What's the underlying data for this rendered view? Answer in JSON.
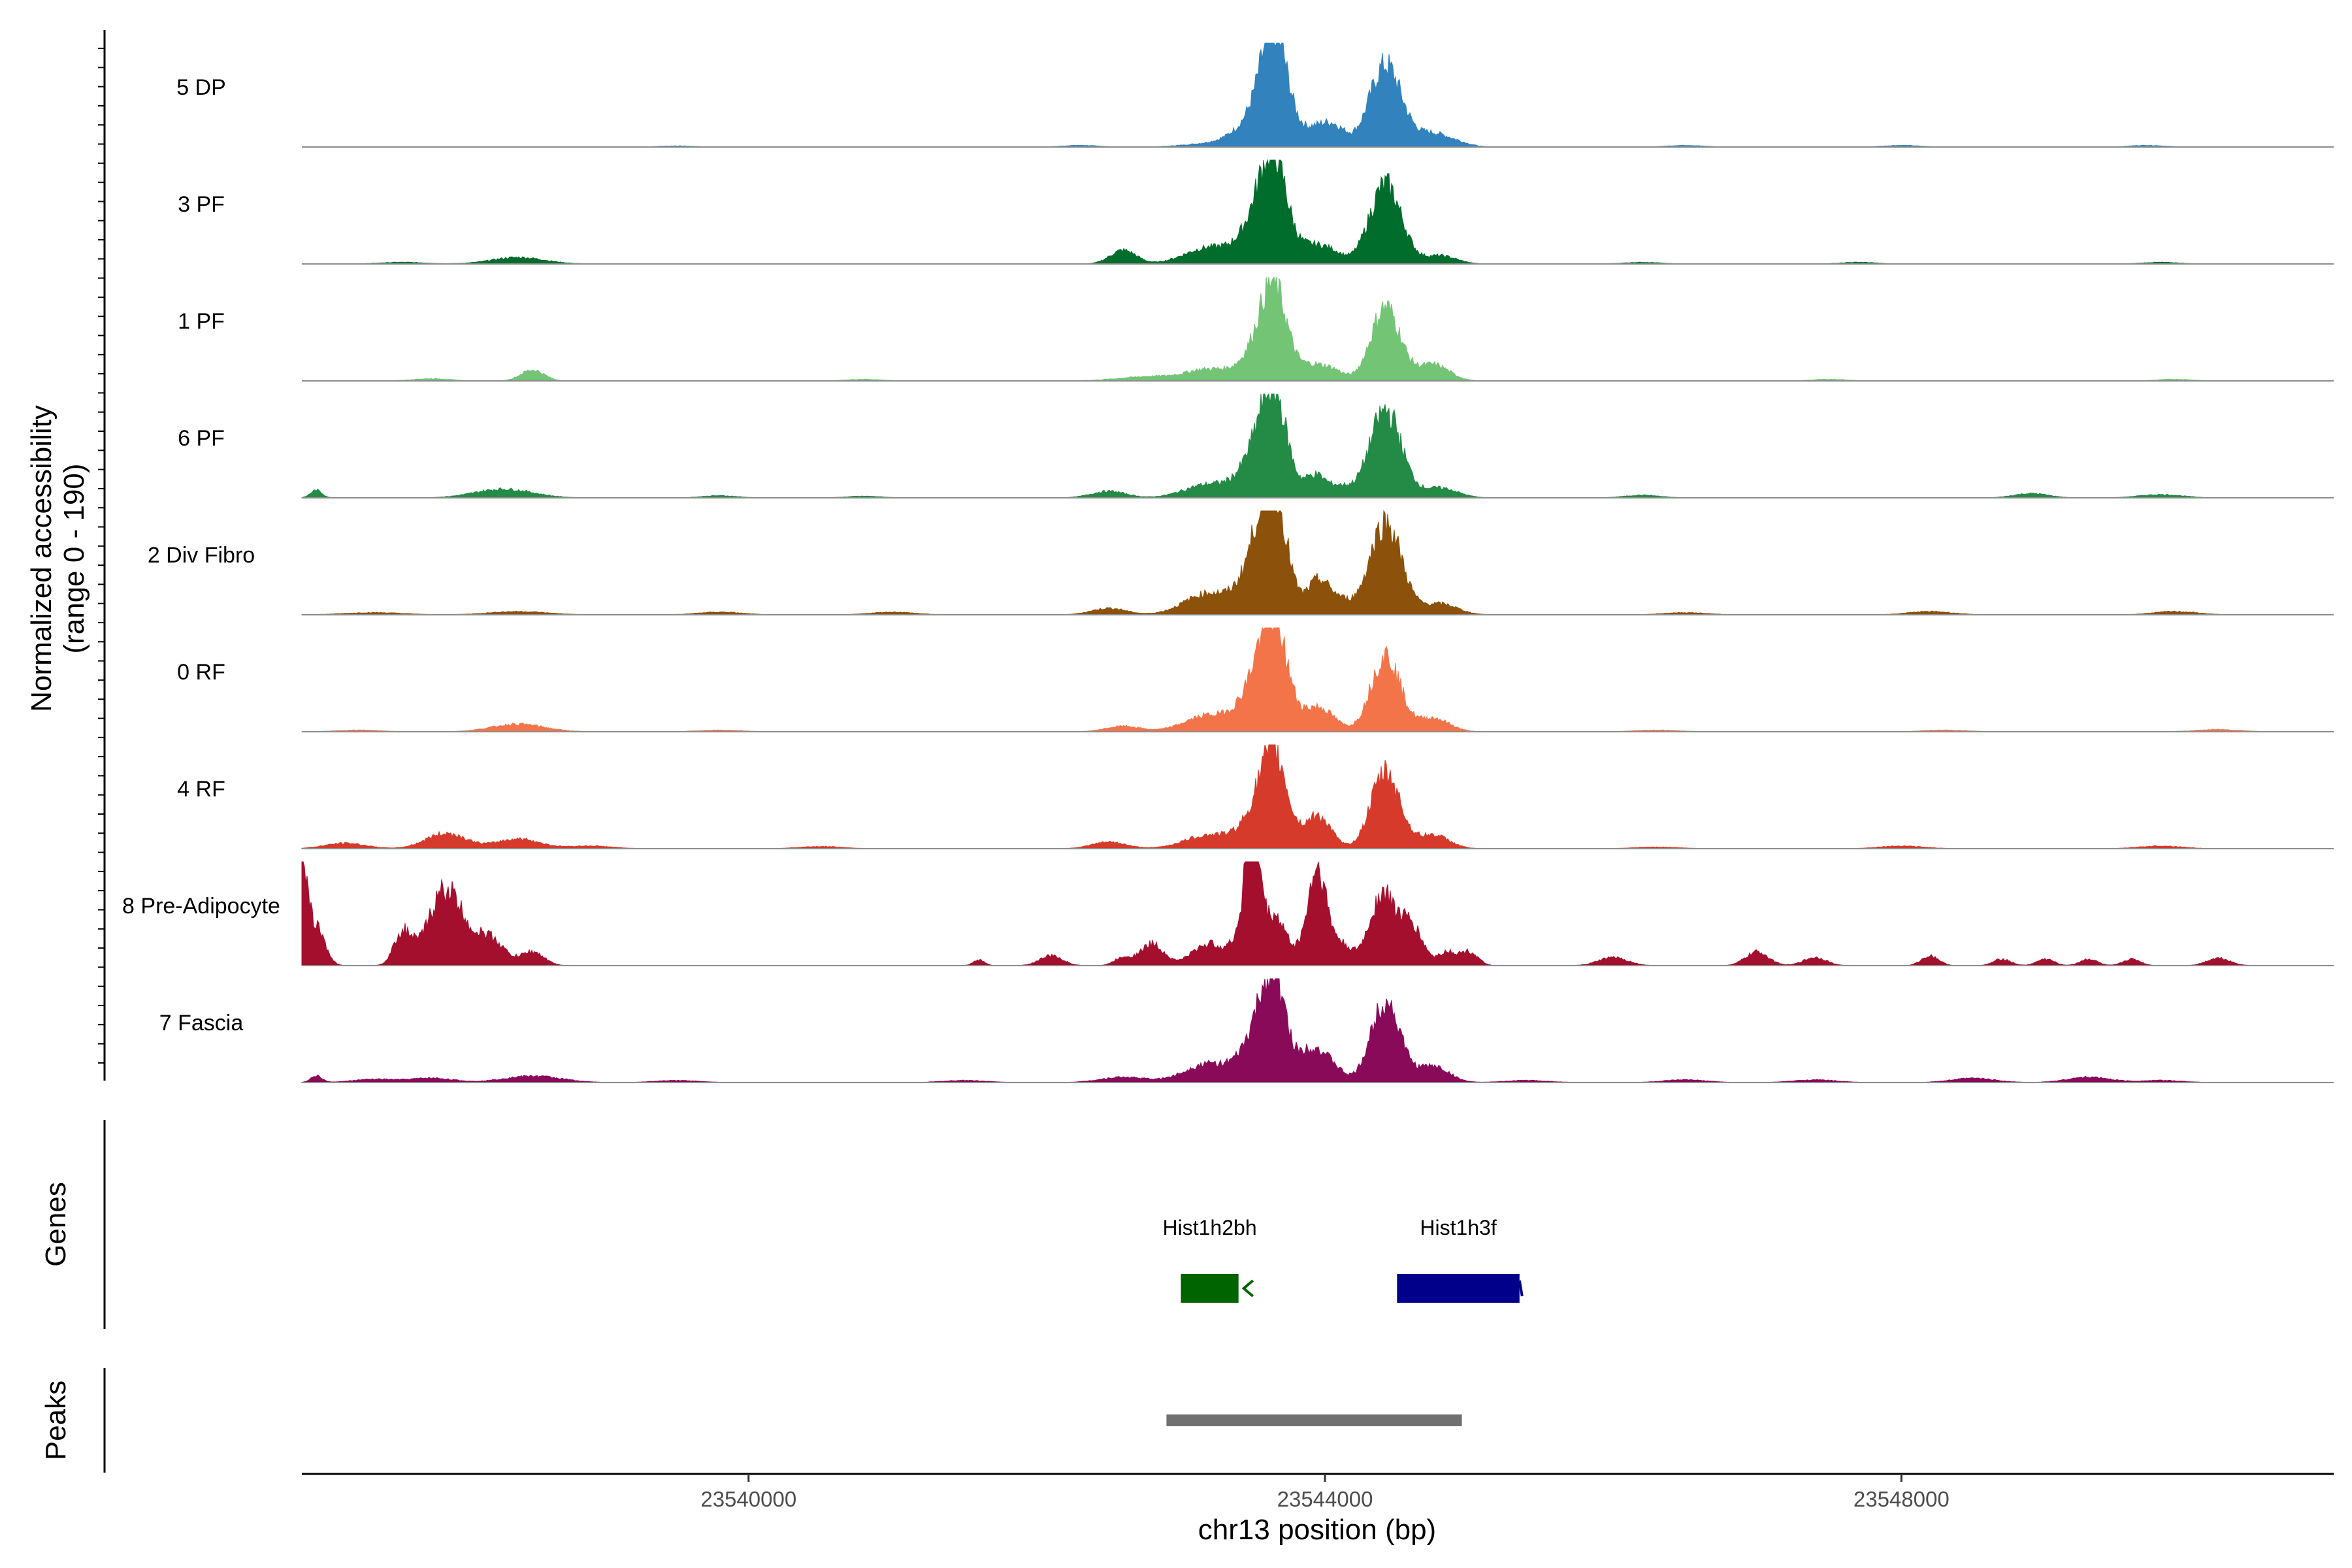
{
  "chart_data": {
    "type": "area",
    "title": "",
    "ylabel": "Normalized accessibility",
    "ylabel_sub": "(range 0 - 190)",
    "xlabel": "chr13 position (bp)",
    "xlim": [
      23536900,
      23551000
    ],
    "ylim": [
      0,
      190
    ],
    "x_ticks": [
      {
        "value": 23540000,
        "label": "23540000"
      },
      {
        "value": 23544000,
        "label": "23544000"
      },
      {
        "value": 23548000,
        "label": "23548000"
      }
    ],
    "series": [
      {
        "name": "5 DP",
        "color": "#3182bd",
        "peaks": [
          [
            23543200,
            6,
            180
          ],
          [
            23543550,
            55,
            150
          ],
          [
            23543650,
            175,
            90
          ],
          [
            23543900,
            22,
            80
          ],
          [
            23544050,
            40,
            90
          ],
          [
            23544420,
            150,
            110
          ],
          [
            23544750,
            25,
            120
          ],
          [
            23544950,
            4,
            80
          ],
          [
            23539500,
            2,
            120
          ],
          [
            23542300,
            3,
            120
          ],
          [
            23546500,
            3,
            120
          ],
          [
            23548000,
            3,
            120
          ],
          [
            23549700,
            3,
            120
          ]
        ]
      },
      {
        "name": "3 PF",
        "color": "#006d2c",
        "peaks": [
          [
            23538400,
            12,
            180
          ],
          [
            23537600,
            3,
            150
          ],
          [
            23542600,
            25,
            90
          ],
          [
            23543200,
            30,
            170
          ],
          [
            23543550,
            80,
            120
          ],
          [
            23543650,
            150,
            90
          ],
          [
            23543900,
            30,
            90
          ],
          [
            23544050,
            20,
            80
          ],
          [
            23544420,
            145,
            110
          ],
          [
            23544800,
            15,
            110
          ],
          [
            23546200,
            3,
            120
          ],
          [
            23547700,
            3,
            120
          ],
          [
            23549800,
            3,
            120
          ]
        ]
      },
      {
        "name": "1 PF",
        "color": "#74c476",
        "peaks": [
          [
            23538500,
            20,
            80
          ],
          [
            23537800,
            4,
            130
          ],
          [
            23540800,
            3,
            120
          ],
          [
            23542800,
            8,
            220
          ],
          [
            23543200,
            20,
            150
          ],
          [
            23543550,
            55,
            120
          ],
          [
            23543650,
            140,
            90
          ],
          [
            23543900,
            25,
            80
          ],
          [
            23544050,
            20,
            80
          ],
          [
            23544420,
            135,
            100
          ],
          [
            23544750,
            30,
            110
          ],
          [
            23547500,
            3,
            120
          ],
          [
            23549900,
            3,
            120
          ]
        ]
      },
      {
        "name": "6 PF",
        "color": "#238b45",
        "peaks": [
          [
            23537000,
            14,
            40
          ],
          [
            23538300,
            16,
            200
          ],
          [
            23539800,
            4,
            120
          ],
          [
            23540800,
            3,
            120
          ],
          [
            23542500,
            12,
            120
          ],
          [
            23543200,
            25,
            170
          ],
          [
            23543550,
            80,
            120
          ],
          [
            23543650,
            145,
            90
          ],
          [
            23543930,
            40,
            70
          ],
          [
            23544100,
            20,
            80
          ],
          [
            23544420,
            160,
            110
          ],
          [
            23544800,
            18,
            120
          ],
          [
            23546200,
            5,
            120
          ],
          [
            23548900,
            8,
            120
          ],
          [
            23549800,
            6,
            150
          ]
        ]
      },
      {
        "name": "2 Div Fibro",
        "color": "#8c510a",
        "peaks": [
          [
            23537400,
            4,
            200
          ],
          [
            23538400,
            6,
            200
          ],
          [
            23539800,
            5,
            150
          ],
          [
            23541000,
            5,
            150
          ],
          [
            23542500,
            12,
            120
          ],
          [
            23543200,
            40,
            170
          ],
          [
            23543550,
            110,
            110
          ],
          [
            23543650,
            170,
            90
          ],
          [
            23543950,
            60,
            75
          ],
          [
            23544100,
            25,
            80
          ],
          [
            23544420,
            170,
            110
          ],
          [
            23544800,
            20,
            120
          ],
          [
            23546500,
            4,
            150
          ],
          [
            23548200,
            6,
            150
          ],
          [
            23549900,
            6,
            150
          ]
        ]
      },
      {
        "name": "0 RF",
        "color": "#f4744a",
        "peaks": [
          [
            23537300,
            3,
            150
          ],
          [
            23538400,
            14,
            180
          ],
          [
            23539800,
            3,
            150
          ],
          [
            23542600,
            10,
            120
          ],
          [
            23543200,
            30,
            170
          ],
          [
            23543550,
            90,
            120
          ],
          [
            23543650,
            150,
            90
          ],
          [
            23543950,
            45,
            110
          ],
          [
            23544420,
            140,
            100
          ],
          [
            23544750,
            25,
            110
          ],
          [
            23546300,
            3,
            150
          ],
          [
            23548300,
            3,
            150
          ],
          [
            23550200,
            4,
            150
          ]
        ]
      },
      {
        "name": "4 RF",
        "color": "#d63a2a",
        "peaks": [
          [
            23537200,
            10,
            140
          ],
          [
            23537900,
            28,
            140
          ],
          [
            23538400,
            18,
            150
          ],
          [
            23538900,
            5,
            150
          ],
          [
            23540500,
            4,
            150
          ],
          [
            23542500,
            12,
            120
          ],
          [
            23543200,
            25,
            170
          ],
          [
            23543550,
            60,
            120
          ],
          [
            23543650,
            140,
            90
          ],
          [
            23543950,
            60,
            90
          ],
          [
            23544420,
            140,
            100
          ],
          [
            23544750,
            25,
            110
          ],
          [
            23546300,
            3,
            150
          ],
          [
            23548000,
            5,
            150
          ],
          [
            23549800,
            5,
            150
          ]
        ]
      },
      {
        "name": "8 Pre-Adipocyte",
        "color": "#a50f2e",
        "peaks": [
          [
            23536900,
            150,
            40
          ],
          [
            23537000,
            70,
            60
          ],
          [
            23537600,
            60,
            60
          ],
          [
            23537900,
            140,
            120
          ],
          [
            23538200,
            50,
            100
          ],
          [
            23538500,
            25,
            80
          ],
          [
            23541600,
            10,
            40
          ],
          [
            23542100,
            18,
            80
          ],
          [
            23542600,
            15,
            60
          ],
          [
            23542800,
            40,
            80
          ],
          [
            23543200,
            40,
            120
          ],
          [
            23543450,
            70,
            70
          ],
          [
            23543500,
            230,
            45
          ],
          [
            23543650,
            90,
            80
          ],
          [
            23543900,
            40,
            80
          ],
          [
            23543950,
            140,
            60
          ],
          [
            23544100,
            40,
            80
          ],
          [
            23544400,
            130,
            90
          ],
          [
            23544600,
            70,
            80
          ],
          [
            23544850,
            25,
            60
          ],
          [
            23545000,
            25,
            60
          ],
          [
            23546000,
            15,
            100
          ],
          [
            23547000,
            25,
            80
          ],
          [
            23547400,
            15,
            80
          ],
          [
            23548200,
            18,
            60
          ],
          [
            23548700,
            12,
            60
          ],
          [
            23549000,
            12,
            60
          ],
          [
            23549300,
            12,
            60
          ],
          [
            23549600,
            12,
            60
          ],
          [
            23550200,
            14,
            80
          ]
        ]
      },
      {
        "name": "7 Fascia",
        "color": "#8a0a5a",
        "peaks": [
          [
            23537000,
            12,
            40
          ],
          [
            23537400,
            6,
            150
          ],
          [
            23537800,
            8,
            150
          ],
          [
            23538500,
            12,
            200
          ],
          [
            23539500,
            4,
            150
          ],
          [
            23541500,
            4,
            150
          ],
          [
            23542600,
            10,
            160
          ],
          [
            23543200,
            35,
            170
          ],
          [
            23543550,
            90,
            110
          ],
          [
            23543650,
            145,
            80
          ],
          [
            23543900,
            60,
            90
          ],
          [
            23544050,
            25,
            80
          ],
          [
            23544420,
            150,
            100
          ],
          [
            23544750,
            30,
            110
          ],
          [
            23545400,
            4,
            150
          ],
          [
            23546500,
            5,
            150
          ],
          [
            23547400,
            5,
            150
          ],
          [
            23548500,
            8,
            150
          ],
          [
            23549300,
            10,
            150
          ],
          [
            23549800,
            4,
            150
          ]
        ]
      }
    ],
    "genes": [
      {
        "name": "Hist1h2bh",
        "start": 23543000,
        "end": 23543400,
        "strand": "-",
        "color": "#006400"
      },
      {
        "name": "Hist1h3f",
        "start": 23544500,
        "end": 23545350,
        "strand": "+",
        "color": "#00008b"
      }
    ],
    "peaks_track": [
      {
        "start": 23542900,
        "end": 23544950,
        "color": "#707070"
      }
    ],
    "panel_labels": {
      "genes": "Genes",
      "peaks": "Peaks"
    }
  }
}
